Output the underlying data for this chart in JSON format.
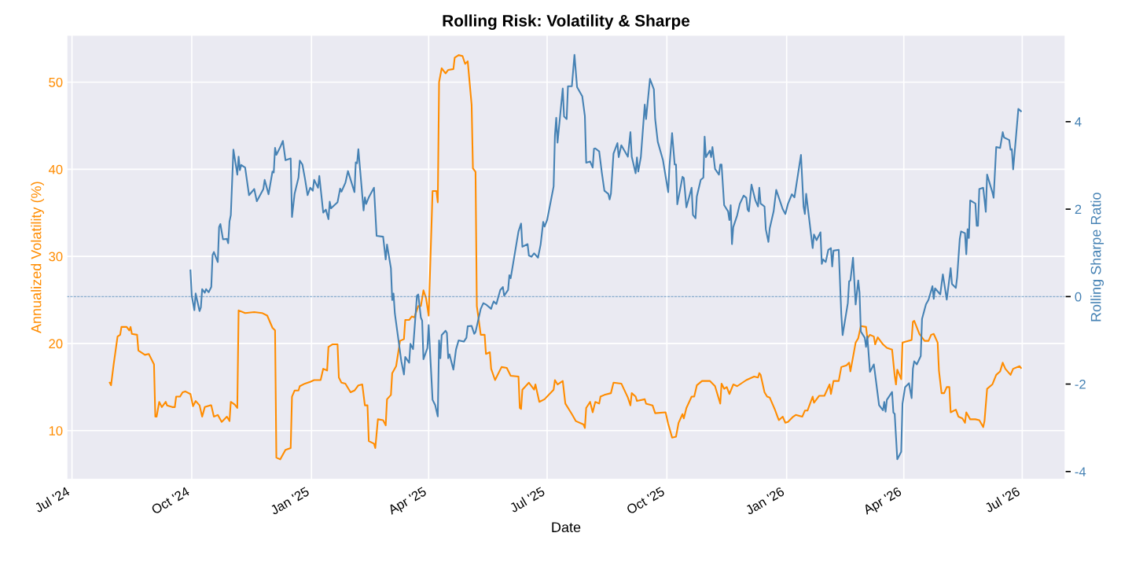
{
  "chart_data": {
    "type": "line",
    "title": "Rolling Risk: Volatility & Sharpe",
    "xlabel": "Date",
    "ylabel": "Annualized Volatility (%)",
    "y2label": "Rolling Sharpe Ratio",
    "xlim": [
      "2024-06-27",
      "2026-08-03"
    ],
    "xticks": [
      {
        "value": "2024-07-01",
        "label": "Jul '24"
      },
      {
        "value": "2024-10-01",
        "label": "Oct '24"
      },
      {
        "value": "2025-01-01",
        "label": "Jan '25"
      },
      {
        "value": "2025-04-01",
        "label": "Apr '25"
      },
      {
        "value": "2025-07-01",
        "label": "Jul '25"
      },
      {
        "value": "2025-10-01",
        "label": "Oct '25"
      },
      {
        "value": "2026-01-01",
        "label": "Jan '26"
      },
      {
        "value": "2026-04-01",
        "label": "Apr '26"
      },
      {
        "value": "2026-07-01",
        "label": "Jul '26"
      }
    ],
    "ylim": [
      4.4,
      55.4
    ],
    "yticks": [
      10,
      20,
      30,
      40,
      50
    ],
    "y2lim": [
      -4.18,
      5.98
    ],
    "y2ticks": [
      -4,
      -2,
      0,
      2,
      4
    ],
    "grid": true,
    "ref_lines": [
      {
        "axis": "y2",
        "value": 0,
        "color": "#4682b4",
        "line_style": "dashed"
      }
    ],
    "series": [
      {
        "color": "#ff8c00",
        "x": [
          "2024-07-30",
          "2024-07-31",
          "2024-08-02",
          "2024-08-05",
          "2024-08-07",
          "2024-08-08",
          "2024-08-12",
          "2024-08-14",
          "2024-08-15",
          "2024-08-16",
          "2024-08-20",
          "2024-08-21",
          "2024-08-26",
          "2024-08-29",
          "2024-09-02",
          "2024-09-03",
          "2024-09-04",
          "2024-09-06",
          "2024-09-08",
          "2024-09-11",
          "2024-09-12",
          "2024-09-16",
          "2024-09-18",
          "2024-09-19",
          "2024-09-22",
          "2024-09-24",
          "2024-09-26",
          "2024-09-30",
          "2024-10-02",
          "2024-10-04",
          "2024-10-07",
          "2024-10-09",
          "2024-10-11",
          "2024-10-15",
          "2024-10-16",
          "2024-10-18",
          "2024-10-21",
          "2024-10-24",
          "2024-10-28",
          "2024-10-30",
          "2024-10-31",
          "2024-11-03",
          "2024-11-05",
          "2024-11-06",
          "2024-11-11",
          "2024-11-18",
          "2024-11-24",
          "2024-11-28",
          "2024-12-02",
          "2024-12-04",
          "2024-12-05",
          "2024-12-08",
          "2024-12-12",
          "2024-12-16",
          "2024-12-17",
          "2024-12-19",
          "2024-12-22",
          "2024-12-23",
          "2024-12-27",
          "2024-12-31",
          "2025-01-03",
          "2025-01-08",
          "2025-01-10",
          "2025-01-13",
          "2025-01-14",
          "2025-01-17",
          "2025-01-21",
          "2025-01-22",
          "2025-01-24",
          "2025-01-27",
          "2025-01-31",
          "2025-02-03",
          "2025-02-06",
          "2025-02-09",
          "2025-02-11",
          "2025-02-13",
          "2025-02-14",
          "2025-02-18",
          "2025-02-19",
          "2025-02-21",
          "2025-02-25",
          "2025-02-27",
          "2025-02-28",
          "2025-03-03",
          "2025-03-04",
          "2025-03-07",
          "2025-03-10",
          "2025-03-13",
          "2025-03-14",
          "2025-03-17",
          "2025-03-19",
          "2025-03-21",
          "2025-03-24",
          "2025-03-26",
          "2025-03-28",
          "2025-03-30",
          "2025-04-01",
          "2025-04-04",
          "2025-04-07",
          "2025-04-08",
          "2025-04-09",
          "2025-04-11",
          "2025-04-14",
          "2025-04-16",
          "2025-04-20",
          "2025-04-21",
          "2025-04-24",
          "2025-04-27",
          "2025-04-29",
          "2025-05-01",
          "2025-05-04",
          "2025-05-05",
          "2025-05-07",
          "2025-05-08",
          "2025-05-11",
          "2025-05-14",
          "2025-05-15",
          "2025-05-18",
          "2025-05-19",
          "2025-05-22",
          "2025-05-27",
          "2025-05-31",
          "2025-06-03",
          "2025-06-09",
          "2025-06-10",
          "2025-06-11",
          "2025-06-12",
          "2025-06-17",
          "2025-06-21",
          "2025-06-22",
          "2025-06-25",
          "2025-06-29",
          "2025-07-06",
          "2025-07-07",
          "2025-07-09",
          "2025-07-13",
          "2025-07-15",
          "2025-07-20",
          "2025-07-23",
          "2025-07-29",
          "2025-07-30",
          "2025-07-31",
          "2025-08-03",
          "2025-08-05",
          "2025-08-07",
          "2025-08-10",
          "2025-08-11",
          "2025-08-14",
          "2025-08-19",
          "2025-08-21",
          "2025-08-27",
          "2025-09-01",
          "2025-09-03",
          "2025-09-04",
          "2025-09-07",
          "2025-09-08",
          "2025-09-14",
          "2025-09-15",
          "2025-09-20",
          "2025-09-22",
          "2025-09-30",
          "2025-10-02",
          "2025-10-05",
          "2025-10-08",
          "2025-10-10",
          "2025-10-13",
          "2025-10-14",
          "2025-10-16",
          "2025-10-20",
          "2025-10-22",
          "2025-10-24",
          "2025-10-28",
          "2025-11-03",
          "2025-11-07",
          "2025-11-11",
          "2025-11-12",
          "2025-11-14",
          "2025-11-16",
          "2025-11-18",
          "2025-11-21",
          "2025-11-24",
          "2025-12-01",
          "2025-12-07",
          "2025-12-10",
          "2025-12-11",
          "2025-12-12",
          "2025-12-15",
          "2025-12-17",
          "2025-12-19",
          "2025-12-23",
          "2025-12-25",
          "2025-12-26",
          "2025-12-29",
          "2025-12-31",
          "2026-01-02",
          "2026-01-06",
          "2026-01-08",
          "2026-01-13",
          "2026-01-15",
          "2026-01-17",
          "2026-01-21",
          "2026-01-22",
          "2026-01-26",
          "2026-01-30",
          "2026-02-03",
          "2026-02-04",
          "2026-02-06",
          "2026-02-10",
          "2026-02-12",
          "2026-02-16",
          "2026-02-18",
          "2026-02-19",
          "2026-02-23",
          "2026-02-25",
          "2026-02-27",
          "2026-03-03",
          "2026-03-04",
          "2026-03-06",
          "2026-03-09",
          "2026-03-10",
          "2026-03-12",
          "2026-03-16",
          "2026-03-19",
          "2026-03-23",
          "2026-03-25",
          "2026-03-26",
          "2026-03-27",
          "2026-03-30",
          "2026-03-31",
          "2026-04-07",
          "2026-04-08",
          "2026-04-09",
          "2026-04-13",
          "2026-04-17",
          "2026-04-20",
          "2026-04-22",
          "2026-04-24",
          "2026-04-27",
          "2026-04-28",
          "2026-04-30",
          "2026-05-02",
          "2026-05-04",
          "2026-05-06",
          "2026-05-07",
          "2026-05-11",
          "2026-05-13",
          "2026-05-16",
          "2026-05-18",
          "2026-05-19",
          "2026-05-22",
          "2026-05-26",
          "2026-05-29",
          "2026-06-01",
          "2026-06-02",
          "2026-06-04",
          "2026-06-08",
          "2026-06-11",
          "2026-06-14",
          "2026-06-16",
          "2026-06-18",
          "2026-06-22",
          "2026-06-24",
          "2026-06-29",
          "2026-06-30"
        ],
        "values": [
          15.5,
          15.2,
          17.6,
          20.8,
          21.0,
          21.9,
          21.9,
          21.5,
          21.9,
          21.1,
          21.0,
          19.2,
          18.7,
          18.8,
          17.6,
          11.6,
          11.6,
          13.3,
          12.7,
          13.3,
          12.9,
          12.7,
          12.7,
          13.9,
          13.9,
          14.4,
          14.5,
          14.2,
          12.8,
          13.4,
          12.9,
          11.6,
          12.7,
          12.9,
          12.9,
          11.6,
          11.8,
          11.0,
          11.6,
          11.1,
          13.3,
          13.0,
          12.6,
          23.8,
          23.5,
          23.6,
          23.5,
          23.2,
          21.8,
          21.5,
          6.9,
          6.7,
          7.8,
          8.0,
          13.9,
          14.6,
          14.6,
          15.1,
          15.4,
          15.6,
          15.8,
          15.8,
          17.1,
          16.9,
          19.6,
          19.9,
          19.9,
          16.1,
          15.5,
          15.4,
          14.4,
          14.6,
          15.2,
          15.3,
          12.9,
          12.9,
          8.8,
          8.5,
          8.0,
          11.3,
          11.2,
          10.6,
          13.6,
          14.1,
          16.6,
          17.4,
          20.3,
          20.5,
          22.7,
          22.7,
          23.1,
          23.0,
          24.3,
          24.3,
          26.1,
          25.2,
          23.2,
          37.5,
          37.5,
          36.2,
          50.0,
          51.6,
          51.0,
          51.4,
          51.5,
          52.8,
          53.1,
          53.0,
          52.1,
          52.4,
          47.4,
          40.1,
          39.7,
          24.3,
          21.0,
          21.0,
          18.8,
          19.0,
          17.1,
          15.8,
          17.3,
          17.2,
          16.3,
          16.2,
          12.6,
          12.5,
          14.7,
          15.5,
          14.7,
          15.3,
          13.3,
          13.6,
          14.7,
          15.8,
          15.3,
          15.7,
          13.1,
          11.9,
          11.1,
          10.7,
          10.3,
          12.6,
          13.3,
          12.1,
          13.3,
          13.1,
          13.9,
          14.1,
          14.3,
          15.5,
          15.4,
          13.8,
          12.9,
          14.3,
          13.9,
          13.4,
          13.6,
          13.1,
          12.9,
          12.0,
          12.1,
          10.8,
          9.2,
          9.3,
          10.9,
          11.9,
          11.4,
          12.6,
          13.9,
          13.9,
          15.2,
          15.7,
          15.7,
          15.1,
          13.1,
          15.4,
          14.8,
          15.0,
          14.2,
          15.3,
          15.1,
          15.8,
          16.2,
          16.1,
          16.6,
          16.4,
          14.4,
          13.9,
          13.8,
          12.4,
          11.6,
          11.2,
          11.6,
          10.9,
          11.0,
          11.6,
          11.8,
          11.6,
          12.3,
          12.3,
          13.9,
          13.2,
          14.0,
          14.0,
          15.3,
          14.2,
          15.7,
          15.7,
          17.3,
          17.5,
          17.8,
          16.8,
          20.1,
          20.6,
          22.0,
          21.9,
          20.6,
          21.0,
          20.8,
          19.9,
          20.7,
          19.9,
          19.5,
          19.3,
          16.3,
          15.3,
          17.0,
          15.9,
          20.1,
          20.4,
          22.5,
          22.6,
          21.1,
          20.3,
          20.3,
          21.0,
          21.1,
          20.1,
          16.9,
          14.3,
          14.3,
          15.0,
          15.0,
          12.1,
          12.4,
          11.6,
          11.4,
          10.9,
          12.1,
          11.3,
          11.3,
          11.2,
          10.4,
          11.1,
          14.8,
          15.3,
          16.4,
          16.8,
          17.8,
          17.1,
          16.4,
          17.1,
          17.4,
          17.2
        ]
      },
      {
        "color": "#4682b4",
        "axis": "y2",
        "x": [
          "2024-09-30",
          "2024-10-01",
          "2024-10-03",
          "2024-10-04",
          "2024-10-07",
          "2024-10-08",
          "2024-10-09",
          "2024-10-11",
          "2024-10-12",
          "2024-10-14",
          "2024-10-16",
          "2024-10-17",
          "2024-10-18",
          "2024-10-21",
          "2024-10-22",
          "2024-10-23",
          "2024-10-25",
          "2024-10-28",
          "2024-10-29",
          "2024-10-30",
          "2024-10-31",
          "2024-11-02",
          "2024-11-05",
          "2024-11-06",
          "2024-11-07",
          "2024-11-08",
          "2024-11-11",
          "2024-11-14",
          "2024-11-18",
          "2024-11-20",
          "2024-11-25",
          "2024-11-26",
          "2024-11-29",
          "2024-12-02",
          "2024-12-03",
          "2024-12-04",
          "2024-12-05",
          "2024-12-08",
          "2024-12-10",
          "2024-12-12",
          "2024-12-16",
          "2024-12-17",
          "2024-12-19",
          "2024-12-22",
          "2024-12-23",
          "2024-12-25",
          "2024-12-27",
          "2024-12-29",
          "2024-12-31",
          "2025-01-02",
          "2025-01-03",
          "2025-01-06",
          "2025-01-07",
          "2025-01-10",
          "2025-01-12",
          "2025-01-14",
          "2025-01-15",
          "2025-01-16",
          "2025-01-21",
          "2025-01-23",
          "2025-01-24",
          "2025-01-27",
          "2025-01-29",
          "2025-02-03",
          "2025-02-04",
          "2025-02-05",
          "2025-02-06",
          "2025-02-10",
          "2025-02-11",
          "2025-02-12",
          "2025-02-14",
          "2025-02-18",
          "2025-02-20",
          "2025-02-25",
          "2025-02-27",
          "2025-02-28",
          "2025-03-03",
          "2025-03-04",
          "2025-03-05",
          "2025-03-06",
          "2025-03-11",
          "2025-03-13",
          "2025-03-14",
          "2025-03-17",
          "2025-03-18",
          "2025-03-20",
          "2025-03-23",
          "2025-03-24",
          "2025-03-26",
          "2025-03-27",
          "2025-03-28",
          "2025-03-31",
          "2025-04-01",
          "2025-04-04",
          "2025-04-06",
          "2025-04-08",
          "2025-04-09",
          "2025-04-10",
          "2025-04-11",
          "2025-04-14",
          "2025-04-15",
          "2025-04-16",
          "2025-04-17",
          "2025-04-20",
          "2025-04-22",
          "2025-04-24",
          "2025-04-28",
          "2025-04-30",
          "2025-05-01",
          "2025-05-04",
          "2025-05-06",
          "2025-05-07",
          "2025-05-11",
          "2025-05-13",
          "2025-05-15",
          "2025-05-19",
          "2025-05-20",
          "2025-05-21",
          "2025-05-23",
          "2025-05-26",
          "2025-05-28",
          "2025-05-29",
          "2025-06-01",
          "2025-06-02",
          "2025-06-03",
          "2025-06-09",
          "2025-06-11",
          "2025-06-12",
          "2025-06-16",
          "2025-06-17",
          "2025-06-19",
          "2025-06-21",
          "2025-06-24",
          "2025-06-26",
          "2025-06-28",
          "2025-06-29",
          "2025-07-01",
          "2025-07-06",
          "2025-07-07",
          "2025-07-08",
          "2025-07-09",
          "2025-07-13",
          "2025-07-14",
          "2025-07-16",
          "2025-07-17",
          "2025-07-20",
          "2025-07-22",
          "2025-07-24",
          "2025-07-28",
          "2025-07-30",
          "2025-07-31",
          "2025-08-03",
          "2025-08-05",
          "2025-08-06",
          "2025-08-07",
          "2025-08-10",
          "2025-08-12",
          "2025-08-14",
          "2025-08-17",
          "2025-08-18",
          "2025-08-19",
          "2025-08-21",
          "2025-08-24",
          "2025-08-25",
          "2025-08-27",
          "2025-09-01",
          "2025-09-03",
          "2025-09-04",
          "2025-09-07",
          "2025-09-08",
          "2025-09-09",
          "2025-09-11",
          "2025-09-14",
          "2025-09-15",
          "2025-09-18",
          "2025-09-21",
          "2025-09-22",
          "2025-09-24",
          "2025-09-28",
          "2025-10-02",
          "2025-10-03",
          "2025-10-05",
          "2025-10-07",
          "2025-10-08",
          "2025-10-09",
          "2025-10-13",
          "2025-10-14",
          "2025-10-16",
          "2025-10-20",
          "2025-10-21",
          "2025-10-23",
          "2025-10-24",
          "2025-10-27",
          "2025-10-29",
          "2025-10-30",
          "2025-10-31",
          "2025-11-03",
          "2025-11-04",
          "2025-11-05",
          "2025-11-07",
          "2025-11-10",
          "2025-11-11",
          "2025-11-12",
          "2025-11-14",
          "2025-11-17",
          "2025-11-18",
          "2025-11-19",
          "2025-11-20",
          "2025-11-21",
          "2025-11-24",
          "2025-11-26",
          "2025-11-29",
          "2025-12-01",
          "2025-12-02",
          "2025-12-03",
          "2025-12-05",
          "2025-12-08",
          "2025-12-10",
          "2025-12-11",
          "2025-12-12",
          "2025-12-15",
          "2025-12-16",
          "2025-12-18",
          "2025-12-19",
          "2025-12-22",
          "2025-12-24",
          "2025-12-29",
          "2025-12-31",
          "2026-01-02",
          "2026-01-05",
          "2026-01-07",
          "2026-01-12",
          "2026-01-14",
          "2026-01-15",
          "2026-01-16",
          "2026-01-21",
          "2026-01-22",
          "2026-01-24",
          "2026-01-27",
          "2026-01-28",
          "2026-01-29",
          "2026-01-31",
          "2026-02-02",
          "2026-02-04",
          "2026-02-05",
          "2026-02-06",
          "2026-02-10",
          "2026-02-12",
          "2026-02-13",
          "2026-02-17",
          "2026-02-18",
          "2026-02-19",
          "2026-02-21",
          "2026-02-23",
          "2026-02-25",
          "2026-02-26",
          "2026-02-27",
          "2026-03-02",
          "2026-03-03",
          "2026-03-04",
          "2026-03-06",
          "2026-03-09",
          "2026-03-10",
          "2026-03-13",
          "2026-03-16",
          "2026-03-17",
          "2026-03-18",
          "2026-03-19",
          "2026-03-23",
          "2026-03-24",
          "2026-03-25",
          "2026-03-27",
          "2026-03-30",
          "2026-03-31",
          "2026-04-02",
          "2026-04-05",
          "2026-04-07",
          "2026-04-08",
          "2026-04-09",
          "2026-04-11",
          "2026-04-14",
          "2026-04-15",
          "2026-04-18",
          "2026-04-20",
          "2026-04-23",
          "2026-04-24",
          "2026-04-25",
          "2026-04-29",
          "2026-05-01",
          "2026-05-04",
          "2026-05-07",
          "2026-05-08",
          "2026-05-11",
          "2026-05-12",
          "2026-05-14",
          "2026-05-15",
          "2026-05-18",
          "2026-05-19",
          "2026-05-20",
          "2026-05-21",
          "2026-05-22",
          "2026-05-26",
          "2026-05-27",
          "2026-05-28",
          "2026-05-29",
          "2026-06-01",
          "2026-06-03",
          "2026-06-04",
          "2026-06-08",
          "2026-06-09",
          "2026-06-11",
          "2026-06-14",
          "2026-06-16",
          "2026-06-17",
          "2026-06-21",
          "2026-06-22",
          "2026-06-23",
          "2026-06-24",
          "2026-06-26",
          "2026-06-28",
          "2026-06-30"
        ],
        "values": [
          0.6,
          0.02,
          -0.31,
          0.07,
          -0.33,
          -0.25,
          0.17,
          0.09,
          0.17,
          0.1,
          0.22,
          0.95,
          1.02,
          0.79,
          1.59,
          1.66,
          1.31,
          1.32,
          1.22,
          1.72,
          1.86,
          3.36,
          2.79,
          3.2,
          2.89,
          3.01,
          2.95,
          2.32,
          2.46,
          2.18,
          2.46,
          2.67,
          2.34,
          2.86,
          2.84,
          3.4,
          3.24,
          3.42,
          3.56,
          3.12,
          3.16,
          1.82,
          2.35,
          2.72,
          3.11,
          3.02,
          2.69,
          2.32,
          2.49,
          2.42,
          2.67,
          2.49,
          2.76,
          1.92,
          1.99,
          1.77,
          2.17,
          2.02,
          2.16,
          2.47,
          2.4,
          2.6,
          2.87,
          2.39,
          3.07,
          3.05,
          3.37,
          1.97,
          2.27,
          2.12,
          2.27,
          2.49,
          1.39,
          1.37,
          0.85,
          1.19,
          0.65,
          -0.08,
          0.07,
          -0.38,
          -1.48,
          -1.78,
          -1.38,
          -1.51,
          -1.08,
          -1.2,
          0.02,
          0.05,
          -0.48,
          -0.55,
          -1.43,
          -1.18,
          -0.65,
          -2.36,
          -2.48,
          -2.74,
          -1.0,
          -1.41,
          -0.88,
          -0.78,
          -0.83,
          -1.41,
          -1.32,
          -1.67,
          -1.21,
          -1.0,
          -1.03,
          -0.94,
          -0.68,
          -0.67,
          -0.85,
          -0.81,
          -0.28,
          -0.15,
          -0.18,
          -0.28,
          -0.18,
          -0.11,
          -0.17,
          0.15,
          0.22,
          0.02,
          0.15,
          0.49,
          0.42,
          1.49,
          1.67,
          1.14,
          1.2,
          0.94,
          0.91,
          0.99,
          0.89,
          1.19,
          1.71,
          1.6,
          1.75,
          2.52,
          3.69,
          4.09,
          3.52,
          4.76,
          4.12,
          4.06,
          4.81,
          4.81,
          5.53,
          4.79,
          4.58,
          4.13,
          3.06,
          3.09,
          2.95,
          3.38,
          3.39,
          3.32,
          2.84,
          2.42,
          2.35,
          2.22,
          2.35,
          3.27,
          3.51,
          3.19,
          3.46,
          3.2,
          3.76,
          3.2,
          2.82,
          3.18,
          2.86,
          3.19,
          4.39,
          4.06,
          4.98,
          4.74,
          4.06,
          3.54,
          3.12,
          2.39,
          2.99,
          3.74,
          3.02,
          3.02,
          2.11,
          2.74,
          2.71,
          2.04,
          2.49,
          1.87,
          1.79,
          2.29,
          2.67,
          2.72,
          3.66,
          3.19,
          3.34,
          3.19,
          3.42,
          2.92,
          2.79,
          3.02,
          3.02,
          2.09,
          1.95,
          1.75,
          2.09,
          1.2,
          1.59,
          1.86,
          2.12,
          2.31,
          2.26,
          1.99,
          1.95,
          2.56,
          2.2,
          2.06,
          2.49,
          2.13,
          2.06,
          1.54,
          1.25,
          1.56,
          1.95,
          2.44,
          2.0,
          1.89,
          2.12,
          2.34,
          2.27,
          3.24,
          2.06,
          1.89,
          2.35,
          1.11,
          1.42,
          1.29,
          1.47,
          0.75,
          0.85,
          0.79,
          1.07,
          1.11,
          0.69,
          1.05,
          1.07,
          -0.41,
          -0.88,
          -0.15,
          0.35,
          0.37,
          0.89,
          -0.18,
          0.37,
          0.09,
          -0.8,
          -0.94,
          -1.15,
          -0.91,
          -1.72,
          -1.55,
          -1.78,
          -2.48,
          -2.6,
          -2.41,
          -2.63,
          -2.36,
          -2.18,
          -2.65,
          -2.68,
          -3.72,
          -3.55,
          -2.45,
          -2.07,
          -1.98,
          -2.32,
          -1.65,
          -1.48,
          -1.55,
          -1.36,
          -0.51,
          -0.18,
          -0.07,
          0.24,
          -0.05,
          0.19,
          0.05,
          0.51,
          -0.07,
          0.65,
          0.29,
          0.2,
          0.45,
          1.32,
          1.49,
          1.45,
          0.97,
          1.54,
          1.34,
          2.2,
          2.13,
          1.62,
          1.62,
          2.46,
          2.49,
          1.94,
          2.79,
          2.39,
          2.26,
          3.42,
          3.4,
          3.76,
          3.64,
          3.58,
          3.36,
          3.37,
          2.91,
          3.59,
          4.29,
          4.24
        ]
      }
    ]
  }
}
